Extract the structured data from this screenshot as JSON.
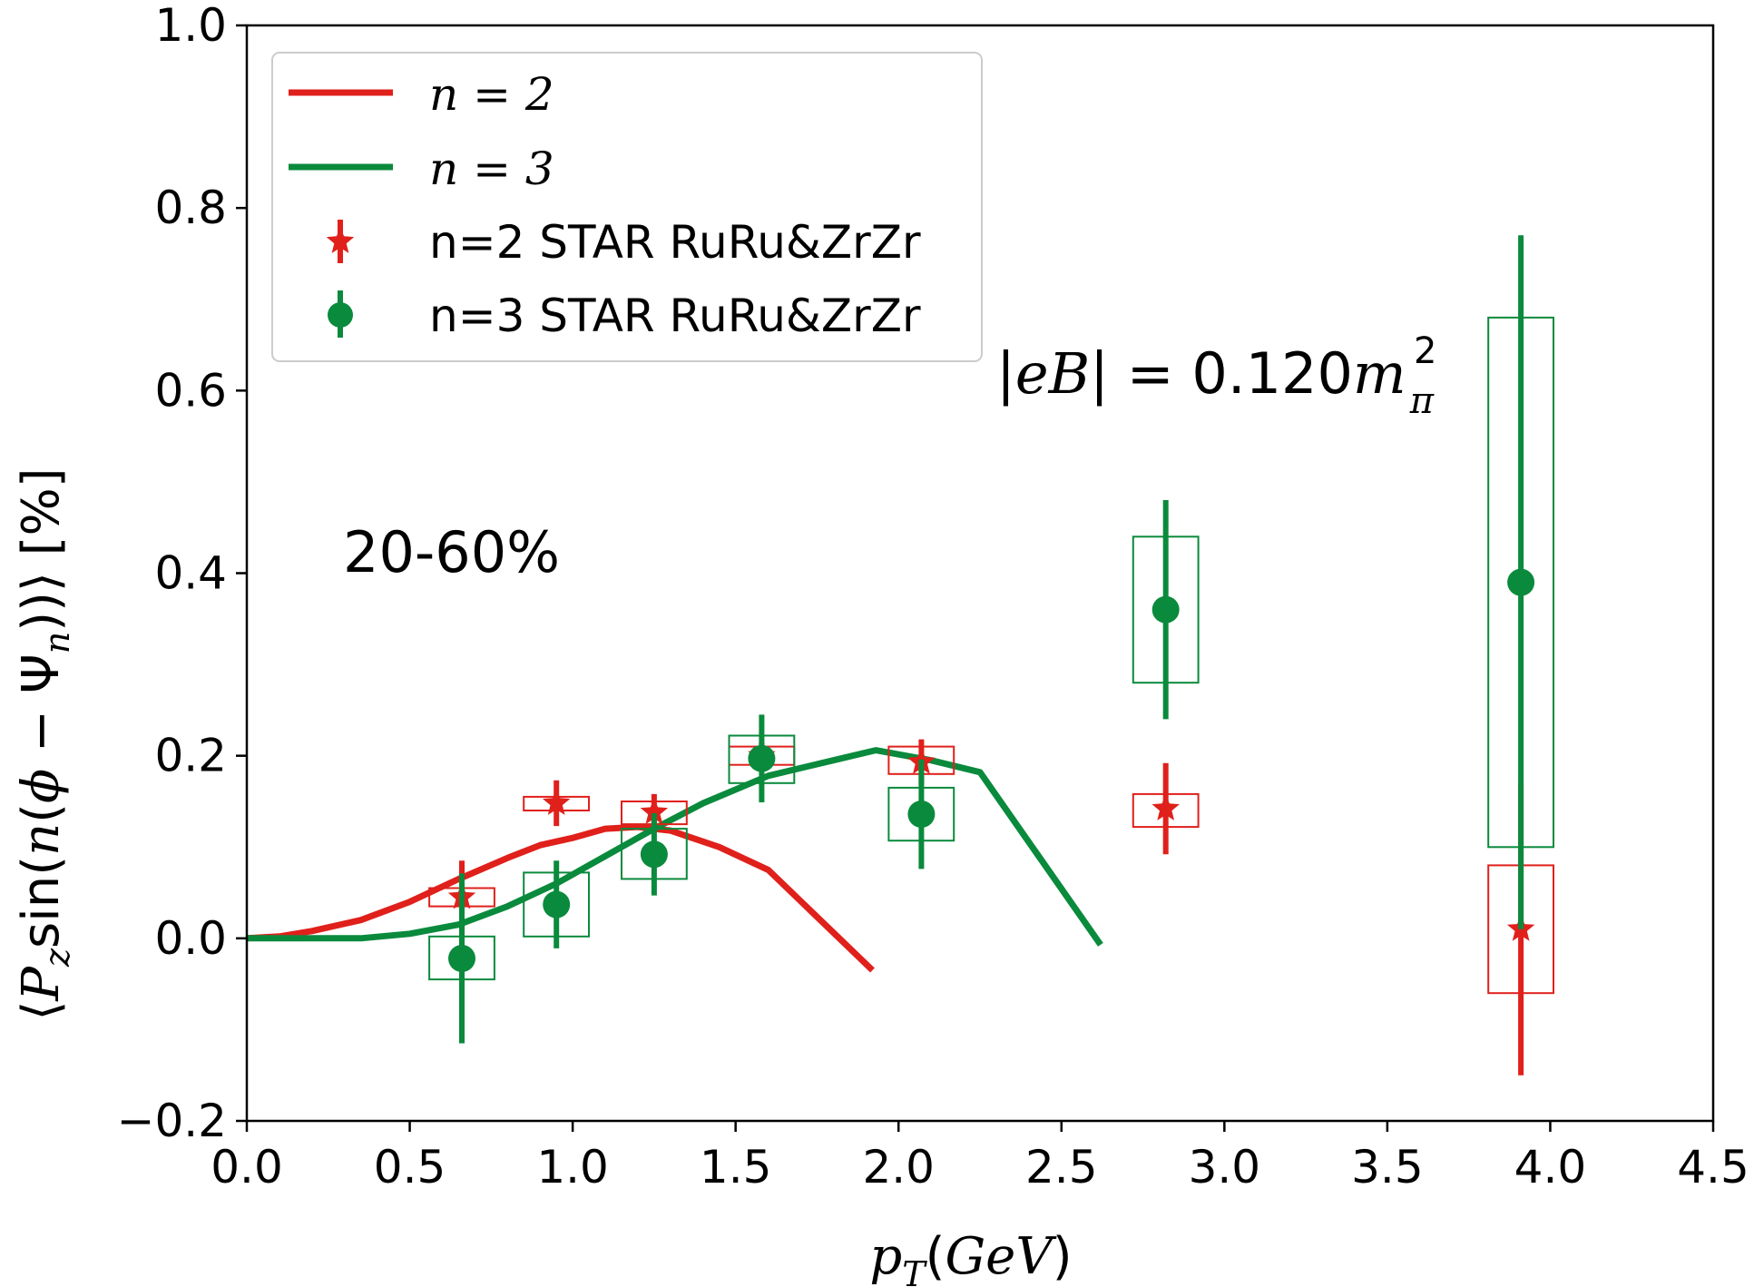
{
  "chart_data": {
    "type": "line",
    "xlabel": "p_T(GeV)",
    "ylabel": "⟨P_z sin(n(φ − Ψ_n))⟩ [%]",
    "xlim": [
      0.0,
      4.5
    ],
    "ylim": [
      -0.2,
      1.0
    ],
    "xticks": [
      "0.0",
      "0.5",
      "1.0",
      "1.5",
      "2.0",
      "2.5",
      "3.0",
      "3.5",
      "4.0",
      "4.5"
    ],
    "yticks": [
      "−0.2",
      "0.0",
      "0.2",
      "0.4",
      "0.6",
      "0.8",
      "1.0"
    ],
    "grid": false,
    "legend_position": "top-left",
    "annotations": [
      "20-60%",
      "|eB| = 0.120m_π^2"
    ],
    "colors": {
      "red": "#e0201b",
      "green": "#0a8a3c"
    },
    "series": [
      {
        "name": "n = 2",
        "kind": "line",
        "color": "#e0201b",
        "x": [
          0.0,
          0.1,
          0.2,
          0.35,
          0.5,
          0.65,
          0.8,
          0.9,
          1.0,
          1.1,
          1.2,
          1.3,
          1.45,
          1.6,
          1.92
        ],
        "y": [
          0.0,
          0.002,
          0.008,
          0.02,
          0.04,
          0.065,
          0.088,
          0.102,
          0.11,
          0.12,
          0.122,
          0.118,
          0.1,
          0.075,
          -0.035
        ]
      },
      {
        "name": "n = 3",
        "kind": "line",
        "color": "#0a8a3c",
        "x": [
          0.0,
          0.35,
          0.5,
          0.65,
          0.8,
          0.95,
          1.1,
          1.25,
          1.4,
          1.6,
          1.8,
          1.93,
          2.1,
          2.25,
          2.62
        ],
        "y": [
          0.0,
          0.0,
          0.005,
          0.015,
          0.035,
          0.06,
          0.09,
          0.12,
          0.148,
          0.178,
          0.195,
          0.206,
          0.195,
          0.182,
          -0.007
        ]
      },
      {
        "name": "n=2 STAR RuRu&ZrZr",
        "kind": "points",
        "marker": "star",
        "color": "#e0201b",
        "x": [
          0.66,
          0.95,
          1.25,
          1.58,
          2.07,
          2.82,
          3.91
        ],
        "y": [
          0.045,
          0.148,
          0.138,
          0.2,
          0.193,
          0.142,
          0.01
        ],
        "err": [
          0.04,
          0.025,
          0.02,
          0.015,
          0.025,
          0.05,
          0.16
        ],
        "sys_low": [
          0.035,
          0.14,
          0.125,
          0.19,
          0.18,
          0.122,
          -0.06
        ],
        "sys_high": [
          0.055,
          0.155,
          0.15,
          0.21,
          0.21,
          0.158,
          0.08
        ],
        "box_halfwidth": 0.1
      },
      {
        "name": "n=3 STAR RuRu&ZrZr",
        "kind": "points",
        "marker": "circle",
        "color": "#0a8a3c",
        "x": [
          0.66,
          0.95,
          1.25,
          1.58,
          2.07,
          2.82,
          3.91
        ],
        "y": [
          -0.022,
          0.037,
          0.092,
          0.197,
          0.136,
          0.36,
          0.39
        ],
        "err": [
          0.093,
          0.048,
          0.045,
          0.048,
          0.06,
          0.12,
          0.38
        ],
        "sys_low": [
          -0.045,
          0.002,
          0.065,
          0.17,
          0.107,
          0.28,
          0.1
        ],
        "sys_high": [
          0.002,
          0.072,
          0.12,
          0.222,
          0.165,
          0.44,
          0.68
        ],
        "box_halfwidth": 0.1
      }
    ]
  }
}
